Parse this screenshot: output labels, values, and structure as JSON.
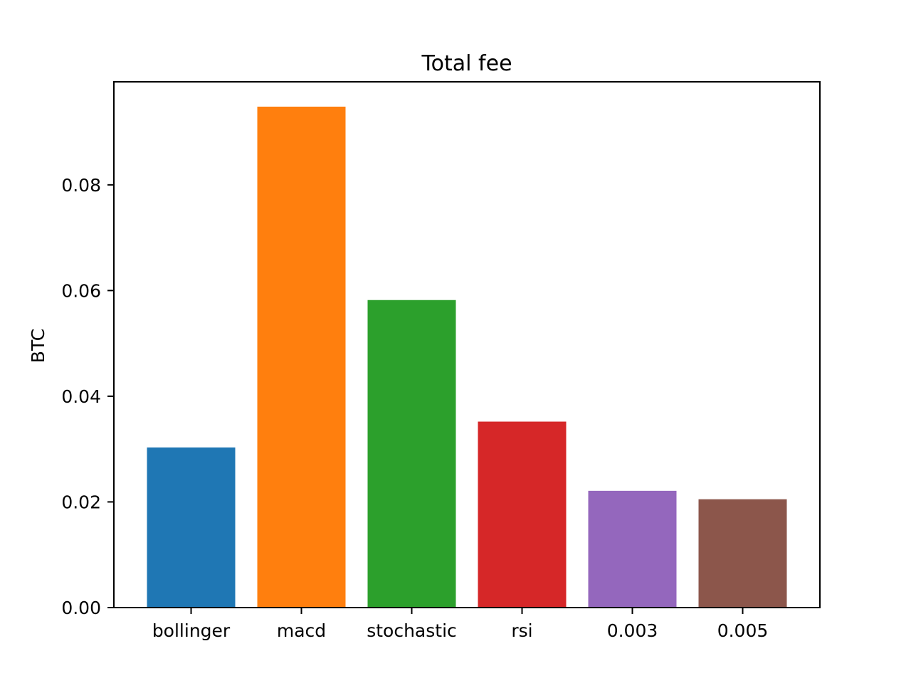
{
  "chart_data": {
    "type": "bar",
    "title": "Total fee",
    "xlabel": "",
    "ylabel": "BTC",
    "categories": [
      "bollinger",
      "macd",
      "stochastic",
      "rsi",
      "0.003",
      "0.005"
    ],
    "values": [
      0.0303,
      0.0948,
      0.0582,
      0.0352,
      0.0221,
      0.0205
    ],
    "colors": [
      "#1f77b4",
      "#ff7f0e",
      "#2ca02c",
      "#d62728",
      "#9467bd",
      "#8c564b"
    ],
    "ylim": [
      0,
      0.0995
    ],
    "yticks": [
      0.0,
      0.02,
      0.04,
      0.06,
      0.08
    ],
    "ytick_labels": [
      "0.00",
      "0.02",
      "0.04",
      "0.06",
      "0.08"
    ],
    "grid": false,
    "legend": "none"
  }
}
